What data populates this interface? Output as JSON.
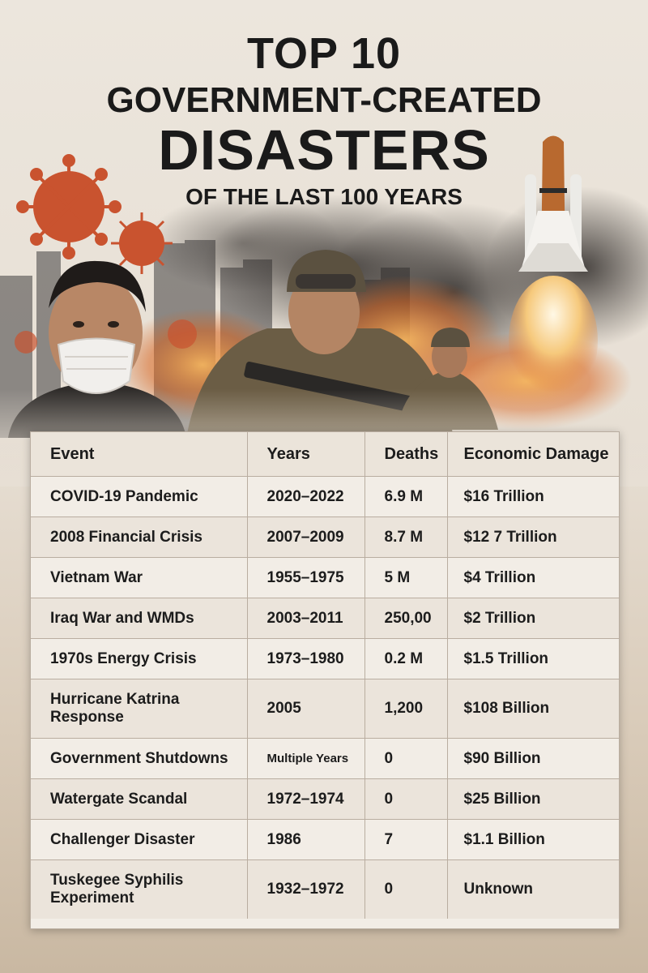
{
  "title": {
    "line1": "TOP 10",
    "line2": "GOVERNMENT-CREATED",
    "line3": "DISASTERS",
    "line4": "OF THE LAST 100 YEARS"
  },
  "table": {
    "headers": [
      "Event",
      "Years",
      "Deaths",
      "Economic Damage"
    ],
    "rows": [
      {
        "event": "COVID-19 Pandemic",
        "years": "2020–2022",
        "deaths": "6.9 M",
        "damage": "$16 Trillion"
      },
      {
        "event": "2008 Financial Crisis",
        "years": "2007–2009",
        "deaths": "8.7 M",
        "damage": "$12 7 Trillion"
      },
      {
        "event": "Vietnam War",
        "years": "1955–1975",
        "deaths": "5 M",
        "damage": "$4 Trillion"
      },
      {
        "event": "Iraq War and WMDs",
        "years": "2003–2011",
        "deaths": "250,00",
        "damage": "$2 Trillion"
      },
      {
        "event": "1970s Energy Crisis",
        "years": "1973–1980",
        "deaths": "0.2 M",
        "damage": "$1.5 Trillion"
      },
      {
        "event": "Hurricane Katrina Response",
        "years": "2005",
        "deaths": "1,200",
        "damage": "$108 Billion"
      },
      {
        "event": "Government Shutdowns",
        "years": "Multiple Years",
        "deaths": "0",
        "damage": "$90 Billion"
      },
      {
        "event": "Watergate Scandal",
        "years": "1972–1974",
        "deaths": "0",
        "damage": "$25 Billion"
      },
      {
        "event": "Challenger Disaster",
        "years": "1986",
        "deaths": "7",
        "damage": "$1.1 Billion"
      },
      {
        "event": "Tuskegee Syphilis Experiment",
        "years": "1932–1972",
        "deaths": "0",
        "damage": "Unknown"
      }
    ]
  },
  "colors": {
    "virus": "#c9532f",
    "smoke": "#3b3633",
    "fire": "#e0782e",
    "soldier": "#6b5d45"
  }
}
